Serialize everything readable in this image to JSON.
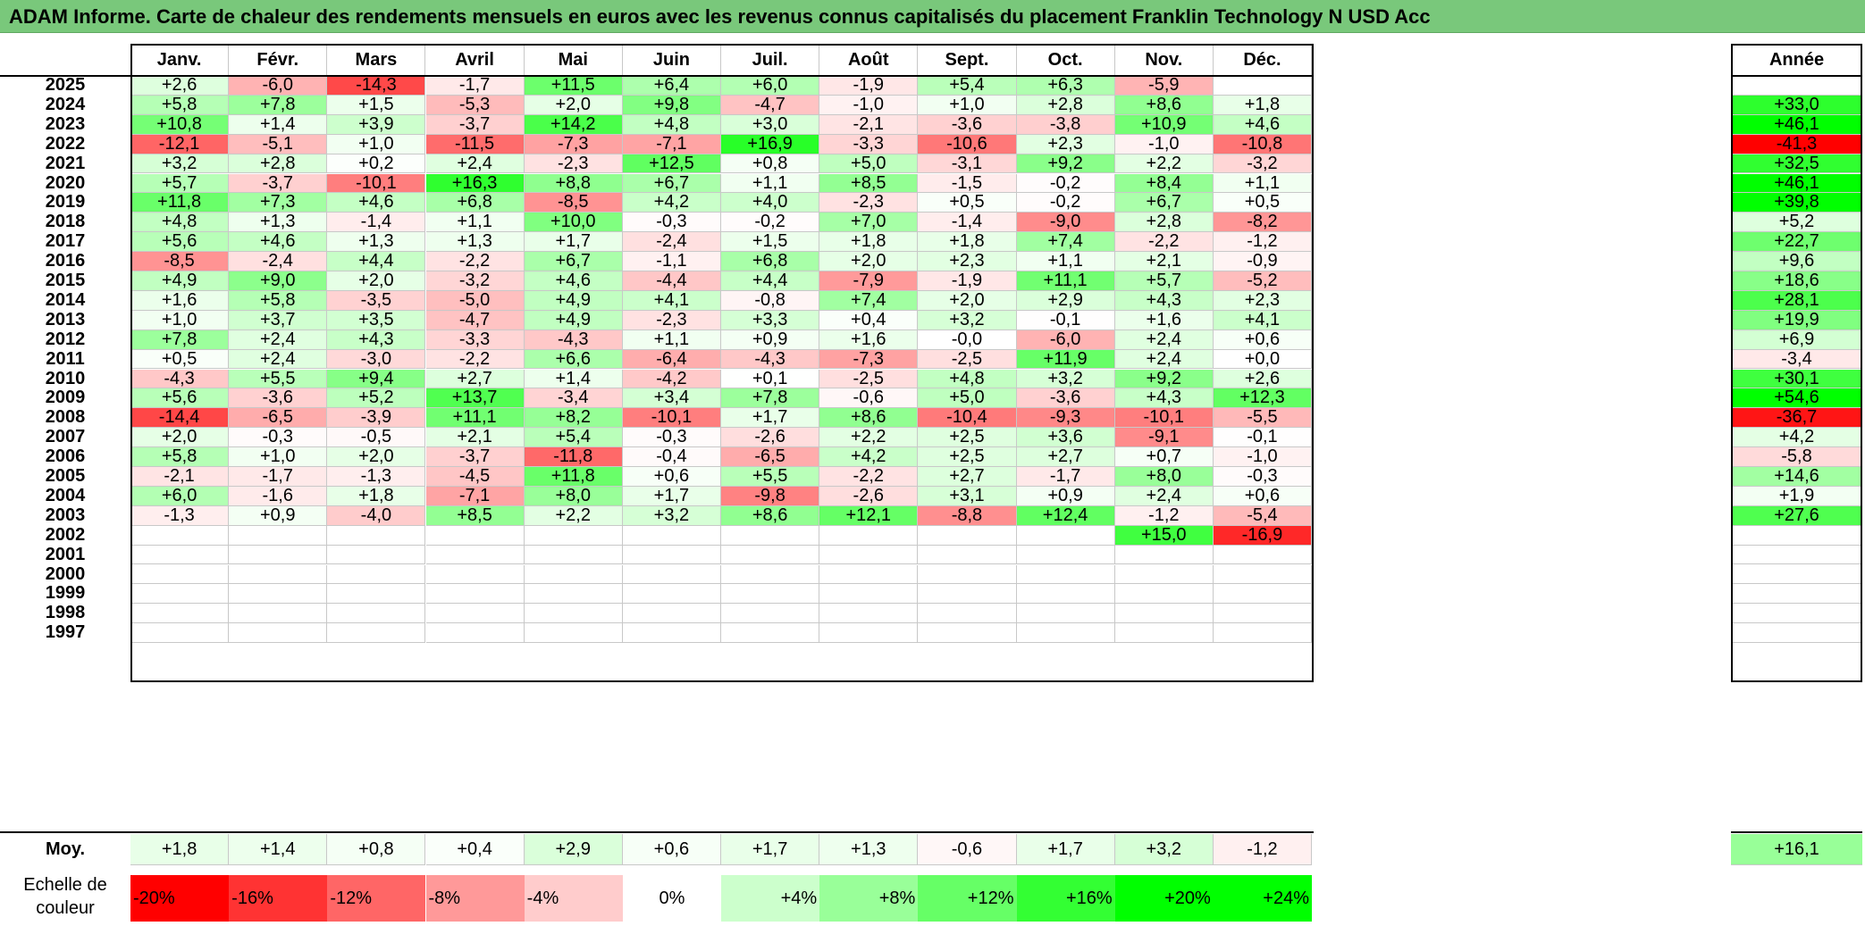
{
  "title": "ADAM Informe. Carte de chaleur des rendements mensuels en euros avec les revenus connus capitalisés du placement Franklin Technology N USD Acc",
  "chart_data": {
    "type": "heatmap",
    "months": [
      "Janv.",
      "Févr.",
      "Mars",
      "Avril",
      "Mai",
      "Juin",
      "Juil.",
      "Août",
      "Sept.",
      "Oct.",
      "Nov.",
      "Déc."
    ],
    "year_header": "Année",
    "rows": [
      {
        "year": "2025",
        "months": [
          "+2,6",
          "-6,0",
          "-14,3",
          "-1,7",
          "+11,5",
          "+6,4",
          "+6,0",
          "-1,9",
          "+5,4",
          "+6,3",
          "-5,9",
          ""
        ],
        "annual": ""
      },
      {
        "year": "2024",
        "months": [
          "+5,8",
          "+7,8",
          "+1,5",
          "-5,3",
          "+2,0",
          "+9,8",
          "-4,7",
          "-1,0",
          "+1,0",
          "+2,8",
          "+8,6",
          "+1,8"
        ],
        "annual": "+33,0"
      },
      {
        "year": "2023",
        "months": [
          "+10,8",
          "+1,4",
          "+3,9",
          "-3,7",
          "+14,2",
          "+4,8",
          "+3,0",
          "-2,1",
          "-3,6",
          "-3,8",
          "+10,9",
          "+4,6"
        ],
        "annual": "+46,1"
      },
      {
        "year": "2022",
        "months": [
          "-12,1",
          "-5,1",
          "+1,0",
          "-11,5",
          "-7,3",
          "-7,1",
          "+16,9",
          "-3,3",
          "-10,6",
          "+2,3",
          "-1,0",
          "-10,8"
        ],
        "annual": "-41,3"
      },
      {
        "year": "2021",
        "months": [
          "+3,2",
          "+2,8",
          "+0,2",
          "+2,4",
          "-2,3",
          "+12,5",
          "+0,8",
          "+5,0",
          "-3,1",
          "+9,2",
          "+2,2",
          "-3,2"
        ],
        "annual": "+32,5"
      },
      {
        "year": "2020",
        "months": [
          "+5,7",
          "-3,7",
          "-10,1",
          "+16,3",
          "+8,8",
          "+6,7",
          "+1,1",
          "+8,5",
          "-1,5",
          "-0,2",
          "+8,4",
          "+1,1"
        ],
        "annual": "+46,1"
      },
      {
        "year": "2019",
        "months": [
          "+11,8",
          "+7,3",
          "+4,6",
          "+6,8",
          "-8,5",
          "+4,2",
          "+4,0",
          "-2,3",
          "+0,5",
          "-0,2",
          "+6,7",
          "+0,5"
        ],
        "annual": "+39,8"
      },
      {
        "year": "2018",
        "months": [
          "+4,8",
          "+1,3",
          "-1,4",
          "+1,1",
          "+10,0",
          "-0,3",
          "-0,2",
          "+7,0",
          "-1,4",
          "-9,0",
          "+2,8",
          "-8,2"
        ],
        "annual": "+5,2"
      },
      {
        "year": "2017",
        "months": [
          "+5,6",
          "+4,6",
          "+1,3",
          "+1,3",
          "+1,7",
          "-2,4",
          "+1,5",
          "+1,8",
          "+1,8",
          "+7,4",
          "-2,2",
          "-1,2"
        ],
        "annual": "+22,7"
      },
      {
        "year": "2016",
        "months": [
          "-8,5",
          "-2,4",
          "+4,4",
          "-2,2",
          "+6,7",
          "-1,1",
          "+6,8",
          "+2,0",
          "+2,3",
          "+1,1",
          "+2,1",
          "-0,9"
        ],
        "annual": "+9,6"
      },
      {
        "year": "2015",
        "months": [
          "+4,9",
          "+9,0",
          "+2,0",
          "-3,2",
          "+4,6",
          "-4,4",
          "+4,4",
          "-7,9",
          "-1,9",
          "+11,1",
          "+5,7",
          "-5,2"
        ],
        "annual": "+18,6"
      },
      {
        "year": "2014",
        "months": [
          "+1,6",
          "+5,8",
          "-3,5",
          "-5,0",
          "+4,9",
          "+4,1",
          "-0,8",
          "+7,4",
          "+2,0",
          "+2,9",
          "+4,3",
          "+2,3"
        ],
        "annual": "+28,1"
      },
      {
        "year": "2013",
        "months": [
          "+1,0",
          "+3,7",
          "+3,5",
          "-4,7",
          "+4,9",
          "-2,3",
          "+3,3",
          "+0,4",
          "+3,2",
          "-0,1",
          "+1,6",
          "+4,1"
        ],
        "annual": "+19,9"
      },
      {
        "year": "2012",
        "months": [
          "+7,8",
          "+2,4",
          "+4,3",
          "-3,3",
          "-4,3",
          "+1,1",
          "+0,9",
          "+1,6",
          "-0,0",
          "-6,0",
          "+2,4",
          "+0,6"
        ],
        "annual": "+6,9"
      },
      {
        "year": "2011",
        "months": [
          "+0,5",
          "+2,4",
          "-3,0",
          "-2,2",
          "+6,6",
          "-6,4",
          "-4,3",
          "-7,3",
          "-2,5",
          "+11,9",
          "+2,4",
          "+0,0"
        ],
        "annual": "-3,4"
      },
      {
        "year": "2010",
        "months": [
          "-4,3",
          "+5,5",
          "+9,4",
          "+2,7",
          "+1,4",
          "-4,2",
          "+0,1",
          "-2,5",
          "+4,8",
          "+3,2",
          "+9,2",
          "+2,6"
        ],
        "annual": "+30,1"
      },
      {
        "year": "2009",
        "months": [
          "+5,6",
          "-3,6",
          "+5,2",
          "+13,7",
          "-3,4",
          "+3,4",
          "+7,8",
          "-0,6",
          "+5,0",
          "-3,6",
          "+4,3",
          "+12,3"
        ],
        "annual": "+54,6"
      },
      {
        "year": "2008",
        "months": [
          "-14,4",
          "-6,5",
          "-3,9",
          "+11,1",
          "+8,2",
          "-10,1",
          "+1,7",
          "+8,6",
          "-10,4",
          "-9,3",
          "-10,1",
          "-5,5"
        ],
        "annual": "-36,7"
      },
      {
        "year": "2007",
        "months": [
          "+2,0",
          "-0,3",
          "-0,5",
          "+2,1",
          "+5,4",
          "-0,3",
          "-2,6",
          "+2,2",
          "+2,5",
          "+3,6",
          "-9,1",
          "-0,1"
        ],
        "annual": "+4,2"
      },
      {
        "year": "2006",
        "months": [
          "+5,8",
          "+1,0",
          "+2,0",
          "-3,7",
          "-11,8",
          "-0,4",
          "-6,5",
          "+4,2",
          "+2,5",
          "+2,7",
          "+0,7",
          "-1,0"
        ],
        "annual": "-5,8"
      },
      {
        "year": "2005",
        "months": [
          "-2,1",
          "-1,7",
          "-1,3",
          "-4,5",
          "+11,8",
          "+0,6",
          "+5,5",
          "-2,2",
          "+2,7",
          "-1,7",
          "+8,0",
          "-0,3"
        ],
        "annual": "+14,6"
      },
      {
        "year": "2004",
        "months": [
          "+6,0",
          "-1,6",
          "+1,8",
          "-7,1",
          "+8,0",
          "+1,7",
          "-9,8",
          "-2,6",
          "+3,1",
          "+0,9",
          "+2,4",
          "+0,6"
        ],
        "annual": "+1,9"
      },
      {
        "year": "2003",
        "months": [
          "-1,3",
          "+0,9",
          "-4,0",
          "+8,5",
          "+2,2",
          "+3,2",
          "+8,6",
          "+12,1",
          "-8,8",
          "+12,4",
          "-1,2",
          "-5,4"
        ],
        "annual": "+27,6"
      },
      {
        "year": "2002",
        "months": [
          "",
          "",
          "",
          "",
          "",
          "",
          "",
          "",
          "",
          "",
          "+15,0",
          "-16,9"
        ],
        "annual": ""
      },
      {
        "year": "2001",
        "months": [
          "",
          "",
          "",
          "",
          "",
          "",
          "",
          "",
          "",
          "",
          "",
          ""
        ],
        "annual": ""
      },
      {
        "year": "2000",
        "months": [
          "",
          "",
          "",
          "",
          "",
          "",
          "",
          "",
          "",
          "",
          "",
          ""
        ],
        "annual": ""
      },
      {
        "year": "1999",
        "months": [
          "",
          "",
          "",
          "",
          "",
          "",
          "",
          "",
          "",
          "",
          "",
          ""
        ],
        "annual": ""
      },
      {
        "year": "1998",
        "months": [
          "",
          "",
          "",
          "",
          "",
          "",
          "",
          "",
          "",
          "",
          "",
          ""
        ],
        "annual": ""
      },
      {
        "year": "1997",
        "months": [
          "",
          "",
          "",
          "",
          "",
          "",
          "",
          "",
          "",
          "",
          "",
          ""
        ],
        "annual": ""
      }
    ],
    "average": {
      "label": "Moy.",
      "months": [
        "+1,8",
        "+1,4",
        "+0,8",
        "+0,4",
        "+2,9",
        "+0,6",
        "+1,7",
        "+1,3",
        "-0,6",
        "+1,7",
        "+3,2",
        "-1,2"
      ],
      "annual": "+16,1"
    },
    "color_scale": {
      "label_line1": "Echelle de",
      "label_line2": "couleur",
      "stops": [
        {
          "label": "-20%",
          "value": -20,
          "color": "#ff0000"
        },
        {
          "label": "-16%",
          "value": -16,
          "color": "#ff3333"
        },
        {
          "label": "-12%",
          "value": -12,
          "color": "#ff6666"
        },
        {
          "label": "-8%",
          "value": -8,
          "color": "#ff9999"
        },
        {
          "label": "-4%",
          "value": -4,
          "color": "#ffcccc"
        },
        {
          "label": "0%",
          "value": 0,
          "color": "#ffffff"
        },
        {
          "label": "+4%",
          "value": 4,
          "color": "#ccffcc"
        },
        {
          "label": "+8%",
          "value": 8,
          "color": "#99ff99"
        },
        {
          "label": "+12%",
          "value": 12,
          "color": "#66ff66"
        },
        {
          "label": "+16%",
          "value": 16,
          "color": "#33ff33"
        },
        {
          "label": "+20%",
          "value": 20,
          "color": "#00ff00"
        },
        {
          "label": "+24%",
          "value": 24,
          "color": "#00ff00"
        }
      ]
    }
  }
}
